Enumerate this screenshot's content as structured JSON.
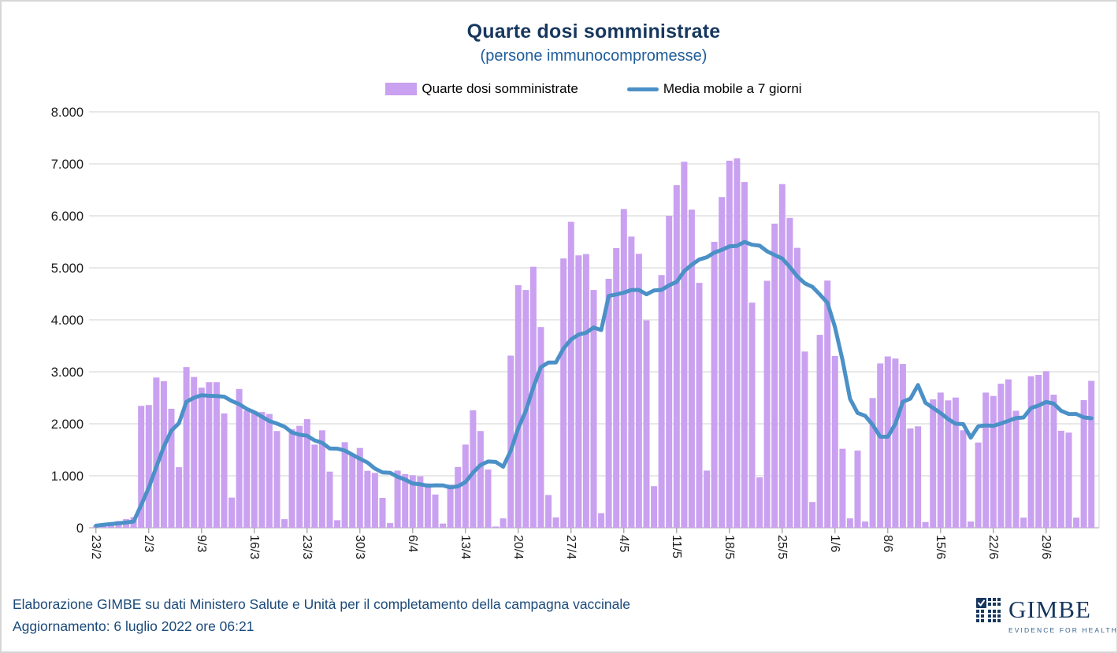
{
  "header": {
    "title": "Quarte dosi somministrate",
    "subtitle": "(persone immunocompromesse)"
  },
  "legend": {
    "items": [
      {
        "label": "Quarte dosi somministrate",
        "swatch": "bar",
        "color": "#c9a1f0"
      },
      {
        "label": "Media mobile a 7 giorni",
        "swatch": "line",
        "color": "#4b90c7"
      }
    ]
  },
  "chart_data": {
    "type": "bar",
    "title": "Quarte dosi somministrate",
    "subtitle": "(persone immunocompromesse)",
    "xlabel": "",
    "ylabel": "",
    "ylim": [
      0,
      8000
    ],
    "grid": "horizontal",
    "legend_position": "top-center",
    "y_tick_labels": [
      "0",
      "1.000",
      "2.000",
      "3.000",
      "4.000",
      "5.000",
      "6.000",
      "7.000",
      "8.000"
    ],
    "x_tick_step": 7,
    "x_tick_labels": [
      "23/2",
      "2/3",
      "9/3",
      "16/3",
      "23/3",
      "30/3",
      "6/4",
      "13/4",
      "20/4",
      "27/4",
      "4/5",
      "11/5",
      "18/5",
      "25/5",
      "1/6",
      "8/6",
      "15/6",
      "22/6",
      "29/6"
    ],
    "series": [
      {
        "name": "Quarte dosi somministrate",
        "type": "bar",
        "color": "#c9a1f0"
      },
      {
        "name": "Media mobile a 7 giorni",
        "type": "line",
        "color": "#4b90c7",
        "window": 7,
        "derived": "7-day moving average of values"
      }
    ],
    "values": [
      40,
      75,
      100,
      130,
      165,
      205,
      2345,
      2360,
      2890,
      2820,
      2290,
      1165,
      3090,
      2900,
      2695,
      2800,
      2800,
      2200,
      580,
      2670,
      2255,
      2240,
      2225,
      2190,
      1860,
      165,
      1895,
      1960,
      2090,
      1600,
      1875,
      1080,
      145,
      1645,
      1410,
      1535,
      1095,
      1055,
      575,
      90,
      1100,
      1030,
      1010,
      990,
      855,
      640,
      80,
      830,
      1170,
      1600,
      2260,
      1860,
      1120,
      25,
      180,
      3310,
      4665,
      4575,
      5020,
      3860,
      630,
      200,
      5180,
      5885,
      5240,
      5265,
      4575,
      280,
      4790,
      5380,
      6130,
      5600,
      5270,
      3990,
      800,
      4860,
      6000,
      6590,
      7040,
      6120,
      4710,
      1100,
      5500,
      6360,
      7060,
      7105,
      6650,
      4330,
      970,
      4750,
      5850,
      6610,
      5960,
      5385,
      3390,
      495,
      3710,
      4755,
      3305,
      1520,
      180,
      1485,
      120,
      2495,
      3160,
      3295,
      3255,
      3150,
      1910,
      1950,
      110,
      2470,
      2600,
      2450,
      2505,
      1875,
      120,
      1640,
      2600,
      2535,
      2770,
      2855,
      2250,
      195,
      2915,
      2940,
      3010,
      2560,
      1865,
      1830,
      195,
      2455,
      2825
    ],
    "colors": {
      "bar": "#c9a1f0",
      "line": "#4b90c7",
      "grid": "#d9d9d9",
      "axis": "#bfbfbf",
      "tick_text": "#1a1a1a"
    }
  },
  "footer": {
    "line1": "Elaborazione GIMBE su dati Ministero Salute e Unità per il completamento della campagna vaccinale",
    "line2": "Aggiornamento: 6 luglio 2022 ore 06:21"
  },
  "logo": {
    "wordmark": "GIMBE",
    "tagline": "EVIDENCE FOR HEALTH"
  }
}
